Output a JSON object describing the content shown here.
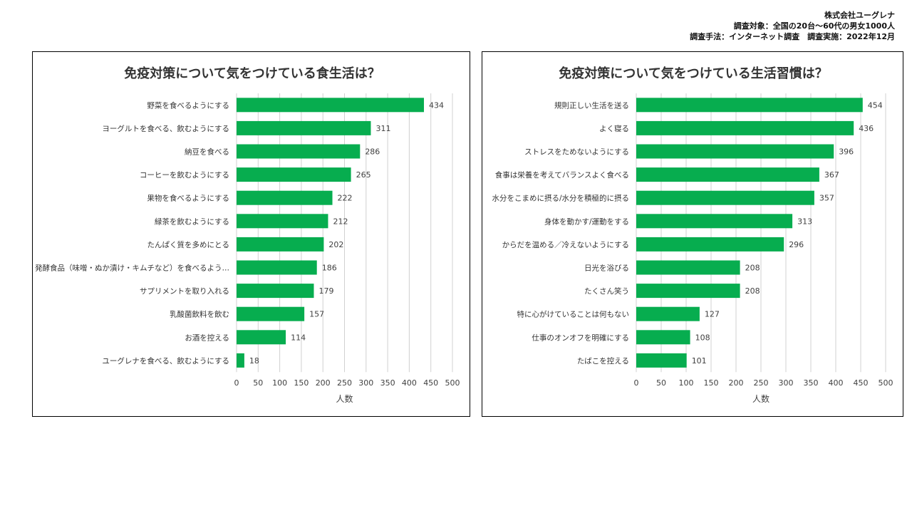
{
  "source": {
    "company": "株式会社ユーグレナ",
    "target": "調査対象：全国の20台～60代の男女1000人",
    "method": "調査手法：インターネット調査　調査実施：2022年12月"
  },
  "colors": {
    "bar": "#07ad4f",
    "grid": "#d0d0d0",
    "border": "#000000"
  },
  "chart_data": [
    {
      "type": "bar",
      "orientation": "horizontal",
      "title": "免疫対策について気をつけている食生活は？",
      "xlabel": "人数",
      "xlim": [
        0,
        500
      ],
      "xticks": [
        0,
        50,
        100,
        150,
        200,
        250,
        300,
        350,
        400,
        450,
        500
      ],
      "grid": true,
      "categories": [
        "野菜を食べるようにする",
        "ヨーグルトを食べる、飲むようにする",
        "納豆を食べる",
        "コーヒーを飲むようにする",
        "果物を食べるようにする",
        "緑茶を飲むようにする",
        "たんぱく質を多めにとる",
        "発酵食品（味噌・ぬか漬け・キムチなど）を食べるよう…",
        "サプリメントを取り入れる",
        "乳酸菌飲料を飲む",
        "お酒を控える",
        "ユーグレナを食べる、飲むようにする"
      ],
      "values": [
        434,
        311,
        286,
        265,
        222,
        212,
        202,
        186,
        179,
        157,
        114,
        18
      ]
    },
    {
      "type": "bar",
      "orientation": "horizontal",
      "title": "免疫対策について気をつけている生活習慣は？",
      "xlabel": "人数",
      "xlim": [
        0,
        500
      ],
      "xticks": [
        0,
        50,
        100,
        150,
        200,
        250,
        300,
        350,
        400,
        450,
        500
      ],
      "grid": true,
      "categories": [
        "規則正しい生活を送る",
        "よく寝る",
        "ストレスをためないようにする",
        "食事は栄養を考えてバランスよく食べる",
        "水分をこまめに摂る/水分を積極的に摂る",
        "身体を動かす/運動をする",
        "からだを温める／冷えないようにする",
        "日光を浴びる",
        "たくさん笑う",
        "特に心がけていることは何もない",
        "仕事のオンオフを明確にする",
        "たばこを控える"
      ],
      "values": [
        454,
        436,
        396,
        367,
        357,
        313,
        296,
        208,
        208,
        127,
        108,
        101
      ]
    }
  ]
}
